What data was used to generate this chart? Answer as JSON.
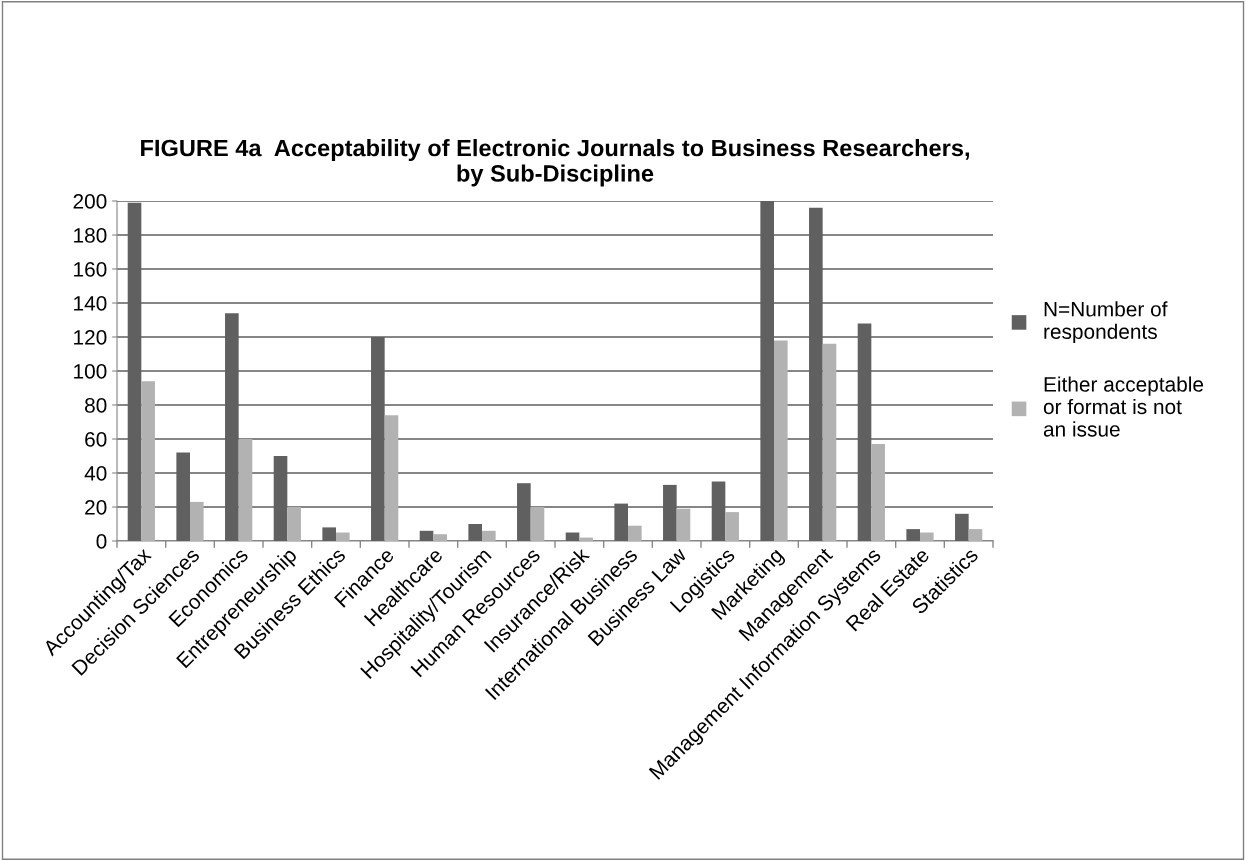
{
  "chart_data": {
    "type": "bar",
    "title": "FIGURE 4a  Acceptability of Electronic Journals to Business Researchers,\nby Sub-Discipline",
    "categories": [
      "Accounting/Tax",
      "Decision Sciences",
      "Economics",
      "Entrepreneurship",
      "Business Ethics",
      "Finance",
      "Healthcare",
      "Hospitality/Tourism",
      "Human Resources",
      "Insurance/Risk",
      "International Business",
      "Business Law",
      "Logistics",
      "Marketing",
      "Management",
      "Management Information Systems",
      "Real Estate",
      "Statistics"
    ],
    "series": [
      {
        "name": "N=Number of respondents",
        "color": "#606060",
        "values": [
          199,
          52,
          134,
          50,
          8,
          120,
          6,
          10,
          34,
          5,
          22,
          33,
          35,
          200,
          196,
          128,
          7,
          16
        ]
      },
      {
        "name": "Either acceptable or format is not an issue",
        "color": "#b2b2b2",
        "values": [
          94,
          23,
          60,
          20,
          5,
          74,
          4,
          6,
          20,
          2,
          9,
          19,
          17,
          118,
          116,
          57,
          5,
          7
        ]
      }
    ],
    "ylim": [
      0,
      200
    ],
    "yticks": [
      0,
      20,
      40,
      60,
      80,
      100,
      120,
      140,
      160,
      180,
      200
    ],
    "grid": "y",
    "legend": "right"
  }
}
